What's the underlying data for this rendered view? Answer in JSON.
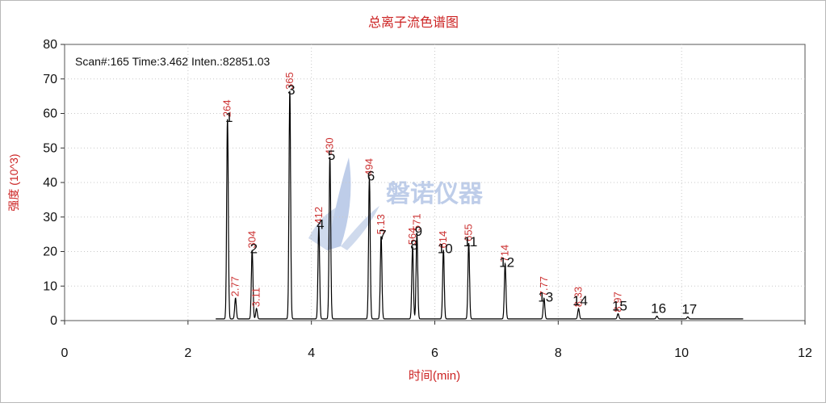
{
  "chart_data": {
    "type": "line",
    "title": "总离子流色谱图",
    "xlabel": "时间(min)",
    "ylabel": "强度 (10^3)",
    "readout": "Scan#:165  Time:3.462  Inten.:82851.03",
    "xlim": [
      0,
      12
    ],
    "ylim": [
      0,
      80
    ],
    "xticks": [
      "0",
      "2",
      "4",
      "6",
      "8",
      "10",
      "12"
    ],
    "yticks": [
      "0",
      "10",
      "20",
      "30",
      "40",
      "50",
      "60",
      "70",
      "80"
    ],
    "watermark": "磐诺仪器",
    "line_color": "#000000",
    "label_color": "#cc3333",
    "peaks": [
      {
        "id": "1",
        "rt": 2.64,
        "height": 58,
        "rt_label": "264"
      },
      {
        "id": "",
        "rt": 2.77,
        "height": 6,
        "rt_label": "2.77"
      },
      {
        "id": "2",
        "rt": 3.04,
        "height": 20,
        "rt_label": "304"
      },
      {
        "id": "",
        "rt": 3.11,
        "height": 3,
        "rt_label": "3.11"
      },
      {
        "id": "3",
        "rt": 3.65,
        "height": 66,
        "rt_label": "365"
      },
      {
        "id": "4",
        "rt": 4.12,
        "height": 27,
        "rt_label": "412"
      },
      {
        "id": "5",
        "rt": 4.3,
        "height": 47,
        "rt_label": "430"
      },
      {
        "id": "6",
        "rt": 4.94,
        "height": 41,
        "rt_label": "494"
      },
      {
        "id": "7",
        "rt": 5.13,
        "height": 24,
        "rt_label": "5.13"
      },
      {
        "id": "8",
        "rt": 5.64,
        "height": 21,
        "rt_label": "564"
      },
      {
        "id": "9",
        "rt": 5.71,
        "height": 25,
        "rt_label": "571"
      },
      {
        "id": "10",
        "rt": 6.14,
        "height": 20,
        "rt_label": "614"
      },
      {
        "id": "11",
        "rt": 6.55,
        "height": 22,
        "rt_label": "655"
      },
      {
        "id": "12",
        "rt": 7.14,
        "height": 16,
        "rt_label": "714"
      },
      {
        "id": "13",
        "rt": 7.77,
        "height": 6,
        "rt_label": "7.77"
      },
      {
        "id": "14",
        "rt": 8.33,
        "height": 3,
        "rt_label": "8.33"
      },
      {
        "id": "15",
        "rt": 8.97,
        "height": 1.5,
        "rt_label": "8.97"
      },
      {
        "id": "16",
        "rt": 9.6,
        "height": 0.8,
        "rt_label": ""
      },
      {
        "id": "17",
        "rt": 10.1,
        "height": 0.6,
        "rt_label": ""
      }
    ]
  }
}
